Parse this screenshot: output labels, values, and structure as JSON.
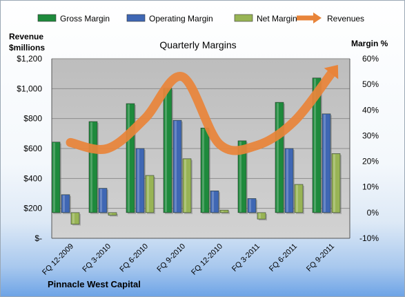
{
  "chart_data": {
    "type": "bar",
    "title": "Quarterly Margins",
    "company": "Pinnacle West Capital",
    "left_axis_title": [
      "Revenue",
      "$millions"
    ],
    "right_axis_title": "Margin %",
    "categories": [
      "FQ 12-2009",
      "FQ 3-2010",
      "FQ 6-2010",
      "FQ 9-2010",
      "FQ 12-2010",
      "FQ 3-2011",
      "FQ 6-2011",
      "FQ 9-2011"
    ],
    "left_ticks": [
      "$-",
      "$200",
      "$400",
      "$600",
      "$800",
      "$1,000",
      "$1,200"
    ],
    "right_ticks": [
      "-10%",
      "0%",
      "10%",
      "20%",
      "30%",
      "40%",
      "50%",
      "60%"
    ],
    "left_ylim": [
      0,
      1200
    ],
    "right_ylim": [
      -10,
      60
    ],
    "series": [
      {
        "name": "Gross Margin",
        "axis": "right",
        "kind": "bar",
        "color": "#1e8a3c",
        "values": [
          27.5,
          35.5,
          42.5,
          48.5,
          33.0,
          28.0,
          43.0,
          52.5
        ]
      },
      {
        "name": "Operating Margin",
        "axis": "right",
        "kind": "bar",
        "color": "#3f67b4",
        "values": [
          7.0,
          9.5,
          25.0,
          36.0,
          8.5,
          5.5,
          25.0,
          38.5
        ]
      },
      {
        "name": "Net Margin",
        "axis": "right",
        "kind": "bar",
        "color": "#98b455",
        "values": [
          -4.5,
          -1.0,
          14.5,
          21.0,
          1.0,
          -2.5,
          11.0,
          23.0
        ]
      },
      {
        "name": "Revenues",
        "axis": "left",
        "kind": "line",
        "color": "#e8843a",
        "values": [
          640,
          600,
          800,
          1080,
          630,
          620,
          780,
          1100
        ]
      }
    ],
    "grid": true,
    "legend_position": "top"
  }
}
